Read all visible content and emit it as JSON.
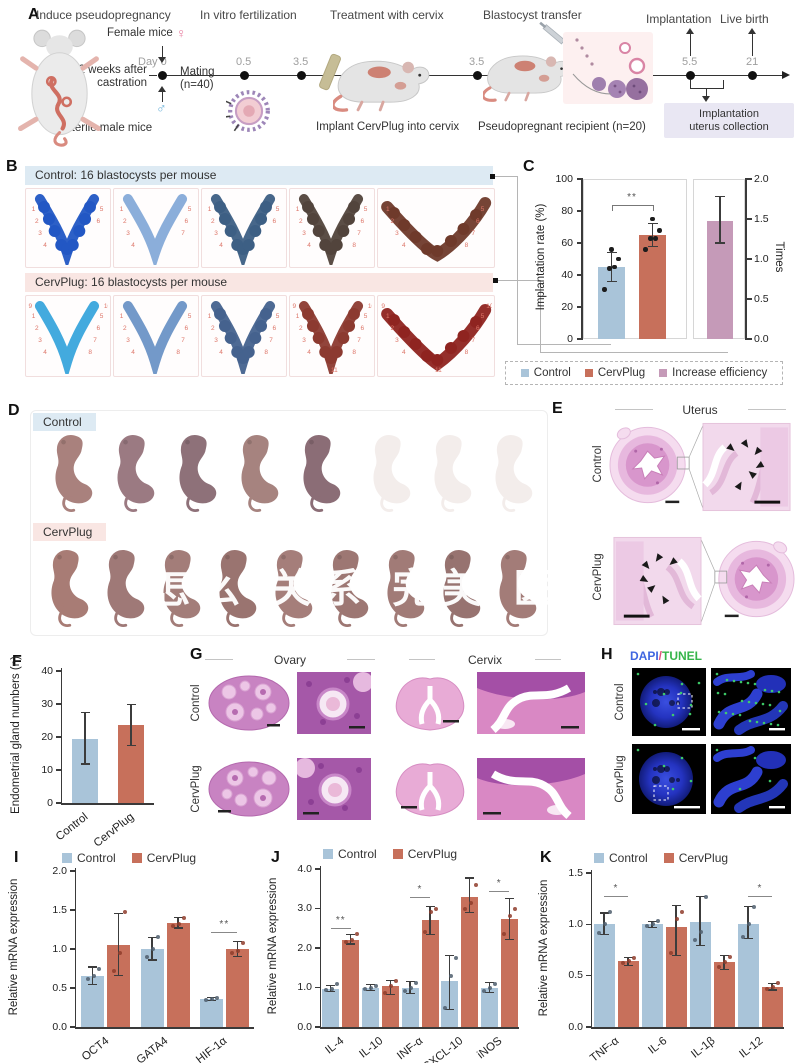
{
  "figure": {
    "background": "#ffffff"
  },
  "colors": {
    "control": "#a9c4d9",
    "cervplug": "#c7705b",
    "increase": "#c59ab8",
    "control_dot": "#4f5e6d",
    "cervplug_dot": "#8f3c2c",
    "point": "#1c1c1c",
    "error": "#3c3c3c",
    "axis": "#3a3a3a",
    "header_blue": "#ddeaf3",
    "header_pink": "#f9e6e3",
    "site_number": "#dd7568"
  },
  "panelA": {
    "label": "A",
    "steps": [
      "Induce pseudopregnancy",
      "In vitro fertilization",
      "Treatment with cervix",
      "Blastocyst transfer",
      "Implantation",
      "Live birth"
    ],
    "female_label": "Female mice",
    "female_symbol": "♀",
    "male_symbol": "♂",
    "sterile_label": "Sterile male mice",
    "castration_line1": "2 weeks after",
    "castration_line2": "castration",
    "day0": "Day 0",
    "mating_line1": "Mating",
    "mating_line2": "(n=40)",
    "timepoints": [
      "0.5",
      "3.5",
      "3.5",
      "5.5",
      "21"
    ],
    "implant_note": "Implant CervPlug into cervix",
    "recipient_note": "Pseudopregnant recipient (n=20)",
    "collection_line1": "Implantation",
    "collection_line2": "uterus collection"
  },
  "panelB": {
    "label": "B",
    "rows": [
      {
        "header": "Control: 16 blastocysts per mouse",
        "header_bg": "header_blue",
        "tiles": [
          {
            "color": "#2257c4",
            "sites": 6
          },
          {
            "color": "#85aad8",
            "sites": 7
          },
          {
            "color": "#3d5f84",
            "sites": 6
          },
          {
            "color": "#52443c",
            "sites": 8
          },
          {
            "color": "#6f3a2b",
            "sites": 8
          }
        ]
      },
      {
        "header": "CervPlug: 16 blastocysts per mouse",
        "header_bg": "header_pink",
        "tiles": [
          {
            "color": "#39a5dc",
            "sites": 10
          },
          {
            "color": "#6b93c6",
            "sites": 8
          },
          {
            "color": "#45628e",
            "sites": 8
          },
          {
            "color": "#8c3a30",
            "sites": 11
          },
          {
            "color": "#8f2420",
            "sites": 11
          }
        ]
      }
    ]
  },
  "panelC": {
    "label": "C"
  },
  "panelD": {
    "label": "D",
    "rows": [
      {
        "header": "Control",
        "header_bg": "header_blue",
        "live_pups": 5,
        "faded_pups": 3
      },
      {
        "header": "CervPlug",
        "header_bg": "header_pink",
        "live_pups": 9,
        "faded_pups": 0
      }
    ],
    "watermark": "怎么 关系 完美 医院?"
  },
  "panelE": {
    "label": "E",
    "title": "Uterus",
    "rows": [
      "Control",
      "CervPlug"
    ]
  },
  "panelF": {
    "label": "F"
  },
  "panelG": {
    "label": "G",
    "columns": [
      "Ovary",
      "Cervix"
    ],
    "rows": [
      "Control",
      "CervPlug"
    ]
  },
  "panelH": {
    "label": "H",
    "title_parts": [
      {
        "text": "DAPI",
        "color": "#3f66e0"
      },
      {
        "text": "/",
        "color": "#e0507a"
      },
      {
        "text": "TUNEL",
        "color": "#35b54a"
      }
    ],
    "rows": [
      "Control",
      "CervPlug"
    ]
  },
  "panelI": {
    "label": "I"
  },
  "panelJ": {
    "label": "J"
  },
  "panelK": {
    "label": "K"
  },
  "chart_data": [
    {
      "id": "C",
      "type": "bar",
      "left_axis": {
        "label": "Implantation rate (%)",
        "lim": [
          0,
          100
        ],
        "ticks": [
          "0",
          "20",
          "40",
          "60",
          "80",
          "100"
        ]
      },
      "right_axis": {
        "label": "Times",
        "lim": [
          0,
          2
        ],
        "ticks": [
          "0.0",
          "0.5",
          "1.0",
          "1.5",
          "2.0"
        ]
      },
      "bars": [
        {
          "name": "Control",
          "color_key": "control",
          "value": 45,
          "err": [
            36,
            54
          ],
          "points": [
            31,
            44,
            45,
            50,
            56
          ]
        },
        {
          "name": "CervPlug",
          "color_key": "cervplug",
          "value": 65,
          "err": [
            58,
            72
          ],
          "points": [
            56,
            63,
            63,
            68,
            75
          ]
        }
      ],
      "increase_bar": {
        "name": "Increase efficiency",
        "color_key": "increase",
        "value": 1.48,
        "err": [
          1.2,
          1.78
        ]
      },
      "significance": "**",
      "legend": [
        {
          "label": "Control",
          "color_key": "control"
        },
        {
          "label": "CervPlug",
          "color_key": "cervplug"
        },
        {
          "label": "Increase efficiency",
          "color_key": "increase"
        }
      ]
    },
    {
      "id": "F",
      "type": "bar",
      "ylabel": "Endometrial gland numbers (n)",
      "ylim": [
        0,
        40
      ],
      "yticks": [
        "0",
        "10",
        "20",
        "30",
        "40"
      ],
      "categories": [
        "Control",
        "CervPlug"
      ],
      "series": [
        {
          "name": "",
          "colors": [
            "control",
            "cervplug"
          ],
          "values": [
            19.5,
            23.5
          ],
          "errors": [
            [
              11.8,
              27.3
            ],
            [
              17.3,
              29.8
            ]
          ]
        }
      ]
    },
    {
      "id": "I",
      "type": "bar",
      "ylabel": "Relative mRNA expression",
      "ylim": [
        0,
        2
      ],
      "yticks": [
        "0.0",
        "0.5",
        "1.0",
        "1.5",
        "2.0"
      ],
      "categories": [
        "OCT4",
        "GATA4",
        "HIF-1α"
      ],
      "series": [
        {
          "name": "Control",
          "color_key": "control",
          "values": [
            0.66,
            1.0,
            0.36
          ],
          "errors": [
            [
              0.55,
              0.77
            ],
            [
              0.86,
              1.15
            ],
            [
              0.34,
              0.38
            ]
          ],
          "points": [
            [
              0.62,
              0.66,
              0.75
            ],
            [
              0.9,
              1.0,
              1.15
            ],
            [
              0.35,
              0.36,
              0.37
            ]
          ]
        },
        {
          "name": "CervPlug",
          "color_key": "cervplug",
          "values": [
            1.05,
            1.33,
            1.0
          ],
          "errors": [
            [
              0.66,
              1.45
            ],
            [
              1.27,
              1.4
            ],
            [
              0.9,
              1.1
            ]
          ],
          "points": [
            [
              0.72,
              0.95,
              1.48
            ],
            [
              1.3,
              1.32,
              1.4
            ],
            [
              0.95,
              0.97,
              1.08
            ]
          ]
        }
      ],
      "sigs": [
        {
          "cat": 2,
          "label": "**",
          "y": 1.22
        }
      ]
    },
    {
      "id": "J",
      "type": "bar",
      "ylabel": "Relative mRNA expression",
      "ylim": [
        0,
        4
      ],
      "yticks": [
        "0.0",
        "1.0",
        "2.0",
        "3.0",
        "4.0"
      ],
      "categories": [
        "IL-4",
        "IL-10",
        "INF-α",
        "CXCL-10",
        "iNOS"
      ],
      "series": [
        {
          "name": "Control",
          "color_key": "control",
          "values": [
            0.97,
            1.0,
            1.0,
            1.17,
            1.0
          ],
          "errors": [
            [
              0.9,
              1.05
            ],
            [
              0.93,
              1.07
            ],
            [
              0.85,
              1.15
            ],
            [
              0.45,
              1.8
            ],
            [
              0.88,
              1.12
            ]
          ],
          "points": [
            [
              0.93,
              0.97,
              1.1
            ],
            [
              0.95,
              1.0,
              1.05
            ],
            [
              0.9,
              1.0,
              1.12
            ],
            [
              0.47,
              1.3,
              1.75
            ],
            [
              0.9,
              1.0,
              1.1
            ]
          ]
        },
        {
          "name": "CervPlug",
          "color_key": "cervplug",
          "values": [
            2.2,
            1.03,
            2.72,
            3.3,
            2.73
          ],
          "errors": [
            [
              2.1,
              2.35
            ],
            [
              0.82,
              1.18
            ],
            [
              2.35,
              3.05
            ],
            [
              2.9,
              3.77
            ],
            [
              2.22,
              3.25
            ]
          ],
          "points": [
            [
              2.15,
              2.2,
              2.35
            ],
            [
              0.85,
              1.05,
              1.17
            ],
            [
              2.4,
              2.9,
              3.0
            ],
            [
              3.0,
              3.15,
              3.6
            ],
            [
              2.35,
              2.8,
              3.0
            ]
          ]
        }
      ],
      "sigs": [
        {
          "cat": 0,
          "label": "**",
          "y": 2.5
        },
        {
          "cat": 2,
          "label": "*",
          "y": 3.3
        },
        {
          "cat": 4,
          "label": "*",
          "y": 3.45
        }
      ]
    },
    {
      "id": "K",
      "type": "bar",
      "ylabel": "Relative mRNA expression",
      "ylim": [
        0,
        1.5
      ],
      "yticks": [
        "0.0",
        "0.5",
        "1.0",
        "1.5"
      ],
      "categories": [
        "TNF-α",
        "IL-6",
        "IL-1β",
        "IL-12"
      ],
      "series": [
        {
          "name": "Control",
          "color_key": "control",
          "values": [
            1.0,
            1.0,
            1.02,
            1.0
          ],
          "errors": [
            [
              0.9,
              1.11
            ],
            [
              0.97,
              1.03
            ],
            [
              0.79,
              1.27
            ],
            [
              0.86,
              1.17
            ]
          ],
          "points": [
            [
              0.92,
              1.0,
              1.12
            ],
            [
              0.98,
              1.0,
              1.03
            ],
            [
              0.85,
              0.93,
              1.27
            ],
            [
              0.88,
              1.0,
              1.17
            ]
          ]
        },
        {
          "name": "CervPlug",
          "color_key": "cervplug",
          "values": [
            0.64,
            0.97,
            0.63,
            0.39
          ],
          "errors": [
            [
              0.6,
              0.68
            ],
            [
              0.7,
              1.18
            ],
            [
              0.56,
              0.7
            ],
            [
              0.36,
              0.42
            ]
          ],
          "points": [
            [
              0.62,
              0.64,
              0.67
            ],
            [
              0.72,
              1.05,
              1.12
            ],
            [
              0.58,
              0.63,
              0.68
            ],
            [
              0.37,
              0.39,
              0.43
            ]
          ]
        }
      ],
      "sigs": [
        {
          "cat": 0,
          "label": "*",
          "y": 1.28
        },
        {
          "cat": 3,
          "label": "*",
          "y": 1.28
        }
      ]
    }
  ]
}
